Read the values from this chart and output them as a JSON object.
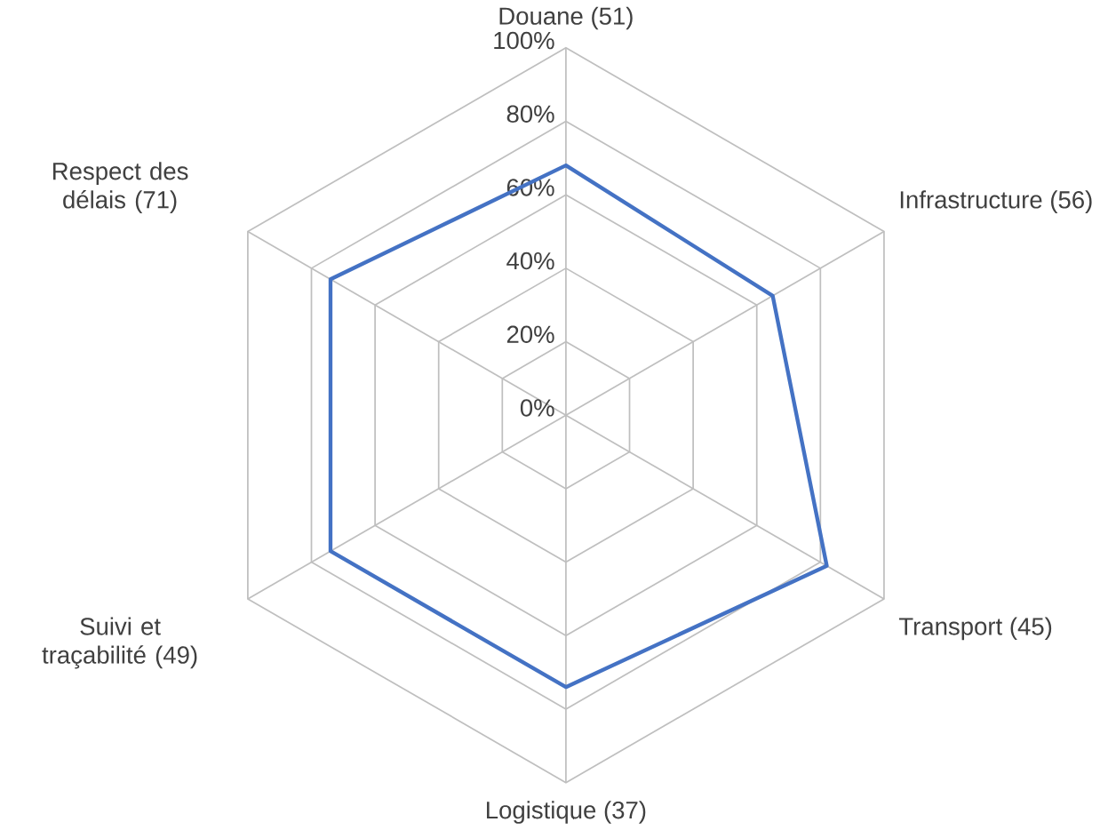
{
  "chart_data": {
    "type": "radar",
    "categories": [
      "Douane (51)",
      "Infrastructure (56)",
      "Transport (45)",
      "Logistique (37)",
      "Suivi et traçabilité (49)",
      "Respect des délais (71)"
    ],
    "series": [
      {
        "color": "#4472c4",
        "values": [
          68,
          65,
          82,
          74,
          74,
          74
        ]
      }
    ],
    "ylim": [
      0,
      100
    ],
    "yticks": [
      {
        "value": 0,
        "label": "0%"
      },
      {
        "value": 20,
        "label": "20%"
      },
      {
        "value": 40,
        "label": "40%"
      },
      {
        "value": 60,
        "label": "60%"
      },
      {
        "value": 80,
        "label": "80%"
      },
      {
        "value": 100,
        "label": "100%"
      }
    ],
    "grid": true
  }
}
